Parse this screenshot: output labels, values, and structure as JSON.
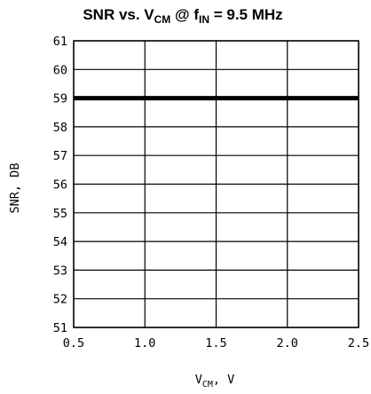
{
  "chart_data": {
    "type": "line",
    "title": {
      "prefix": "SNR vs. V",
      "sub1": "CM",
      "mid": " @ f",
      "sub2": "IN",
      "suffix": " = 9.5 MHz"
    },
    "xlabel": {
      "main": "V",
      "sub": "CM",
      "suffix": ", V"
    },
    "ylabel": "SNR, DB",
    "xlim": [
      0.5,
      2.5
    ],
    "ylim": [
      51,
      61
    ],
    "xticks": [
      0.5,
      1.0,
      1.5,
      2.0,
      2.5
    ],
    "xtick_labels": [
      "0.5",
      "1.0",
      "1.5",
      "2.0",
      "2.5"
    ],
    "yticks": [
      51,
      52,
      53,
      54,
      55,
      56,
      57,
      58,
      59,
      60,
      61
    ],
    "yticks_labels": [
      "51",
      "52",
      "53",
      "54",
      "55",
      "56",
      "57",
      "58",
      "59",
      "60",
      "61"
    ],
    "grid": true,
    "series": [
      {
        "x": [
          0.5,
          2.5
        ],
        "y": [
          59,
          59
        ]
      }
    ]
  }
}
